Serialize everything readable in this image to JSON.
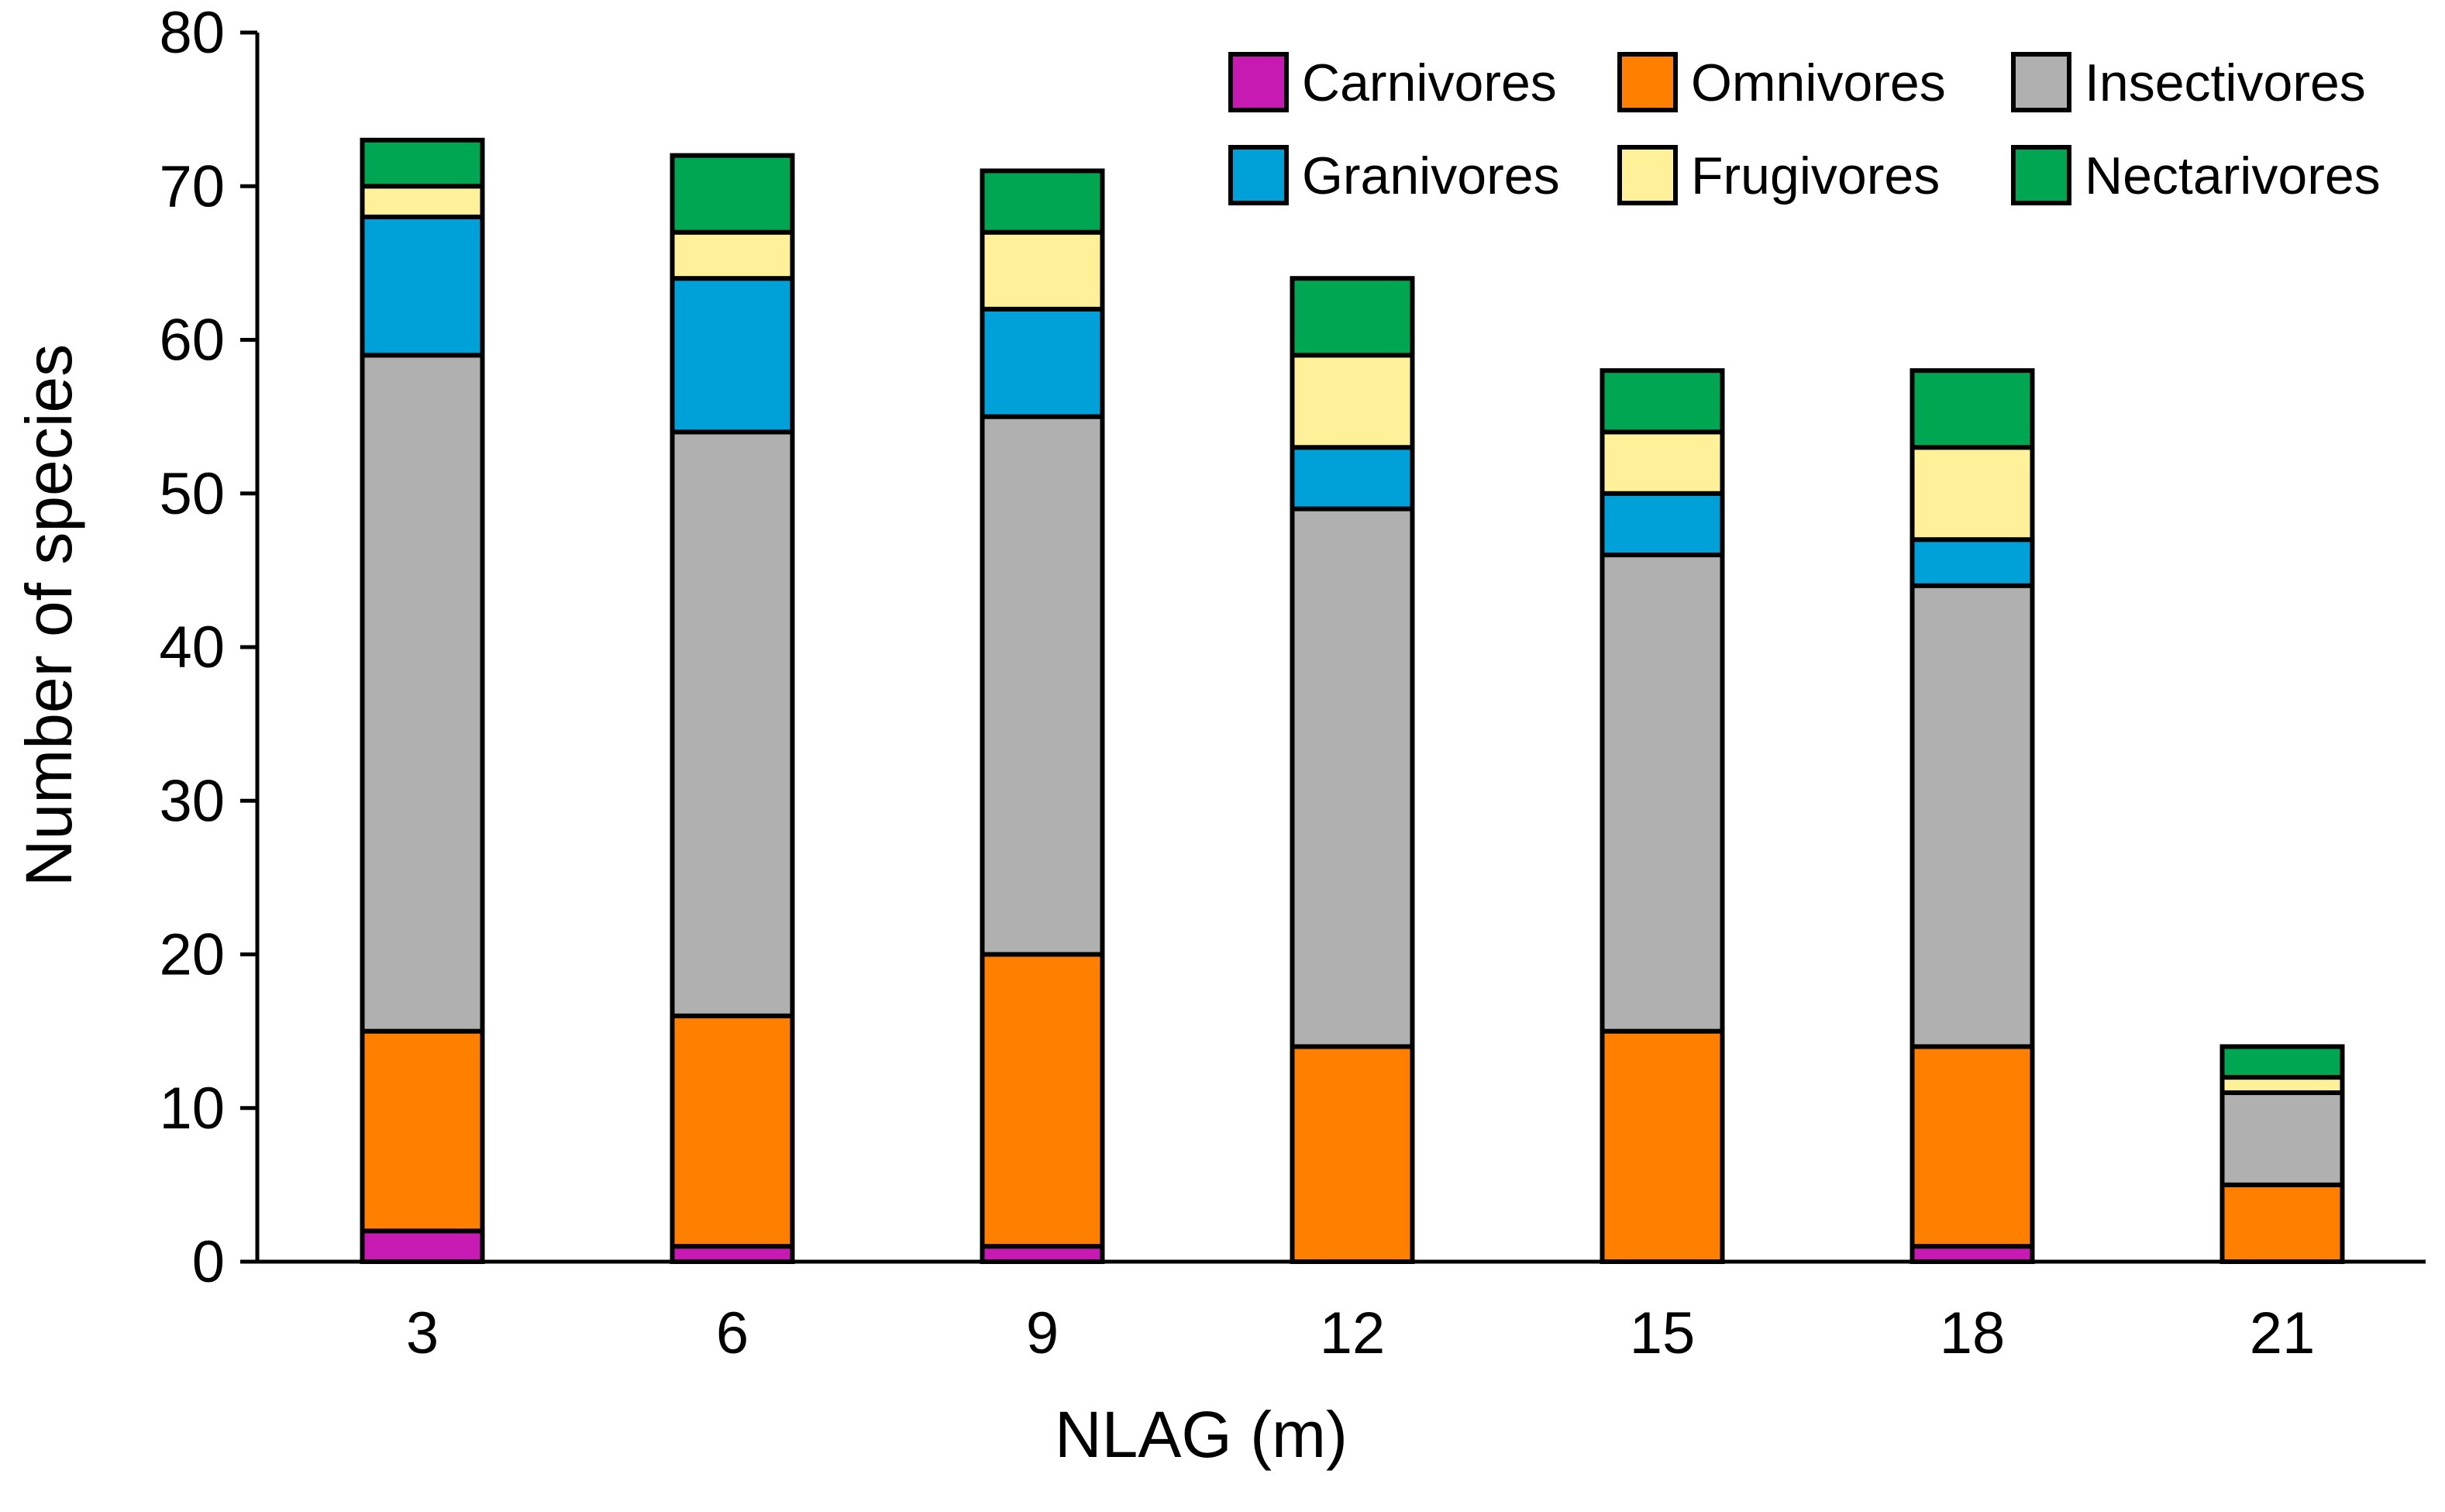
{
  "chart_data": {
    "type": "bar",
    "stacked": true,
    "title": "",
    "xlabel": "NLAG (m)",
    "ylabel": "Number of species",
    "categories": [
      "3",
      "6",
      "9",
      "12",
      "15",
      "18",
      "21"
    ],
    "ylim": [
      0,
      80
    ],
    "yticks": [
      0,
      10,
      20,
      30,
      40,
      50,
      60,
      70,
      80
    ],
    "grid": false,
    "legend_position": "top-right",
    "series": [
      {
        "name": "Carnivores",
        "color": "#c71ab3",
        "values": [
          2,
          1,
          1,
          0,
          0,
          1,
          0
        ]
      },
      {
        "name": "Omnivores",
        "color": "#ff7f00",
        "values": [
          13,
          15,
          19,
          14,
          15,
          13,
          5
        ]
      },
      {
        "name": "Insectivores",
        "color": "#b0b0b0",
        "values": [
          44,
          38,
          35,
          35,
          31,
          30,
          6
        ]
      },
      {
        "name": "Granivores",
        "color": "#00a0d8",
        "values": [
          9,
          10,
          7,
          4,
          4,
          3,
          0
        ]
      },
      {
        "name": "Frugivores",
        "color": "#fff09a",
        "values": [
          2,
          3,
          5,
          6,
          4,
          6,
          1
        ]
      },
      {
        "name": "Nectarivores",
        "color": "#00a651",
        "values": [
          3,
          5,
          4,
          5,
          4,
          5,
          2
        ]
      }
    ]
  }
}
